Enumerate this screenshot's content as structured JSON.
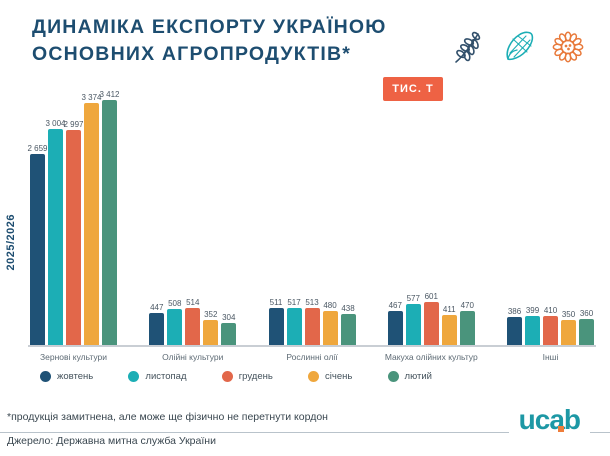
{
  "title": {
    "line1": "ДИНАМІКА ЕКСПОРТУ УКРАЇНОЮ",
    "line2": "ОСНОВНИХ АГРОПРОДУКТІВ*"
  },
  "unit_badge": "ТИС. Т",
  "season_label": "2025/2026",
  "icons": [
    "wheat-icon",
    "corn-icon",
    "sunflower-icon"
  ],
  "chart_data": {
    "type": "bar",
    "title": "Динаміка експорту Україною основних агропродуктів, тис. т",
    "categories": [
      "Зернові культури",
      "Олійні культури",
      "Рослинні олії",
      "Макуха олійних культур",
      "Інші"
    ],
    "series": [
      {
        "name": "жовтень",
        "color": "#1f5276",
        "values": [
          2659,
          447,
          511,
          467,
          386
        ]
      },
      {
        "name": "листопад",
        "color": "#1caeb5",
        "values": [
          3004,
          508,
          517,
          577,
          399
        ]
      },
      {
        "name": "грудень",
        "color": "#e2674a",
        "values": [
          2997,
          514,
          513,
          601,
          410
        ]
      },
      {
        "name": "січень",
        "color": "#efa73d",
        "values": [
          3374,
          352,
          480,
          411,
          350
        ]
      },
      {
        "name": "лютий",
        "color": "#4a947c",
        "values": [
          3412,
          304,
          438,
          470,
          360
        ]
      }
    ],
    "xlabel": "",
    "ylabel": "2025/2026",
    "ylim": [
      0,
      3412
    ],
    "grid": false,
    "value_labels": true,
    "legend_position": "bottom"
  },
  "footnote": "*продукція замитнена, але може ще фізично не перетнути кордон",
  "source": "Джерело: Державна митна служба України",
  "logo_text": {
    "part1": "uc",
    "part2": "a",
    "part3": "b"
  },
  "colors": {
    "title": "#1d4d70",
    "badge_bg": "#ee6244",
    "axis_line": "#c9ced4",
    "logo_teal": "#1d98a5",
    "logo_orange": "#ef7d3a"
  }
}
